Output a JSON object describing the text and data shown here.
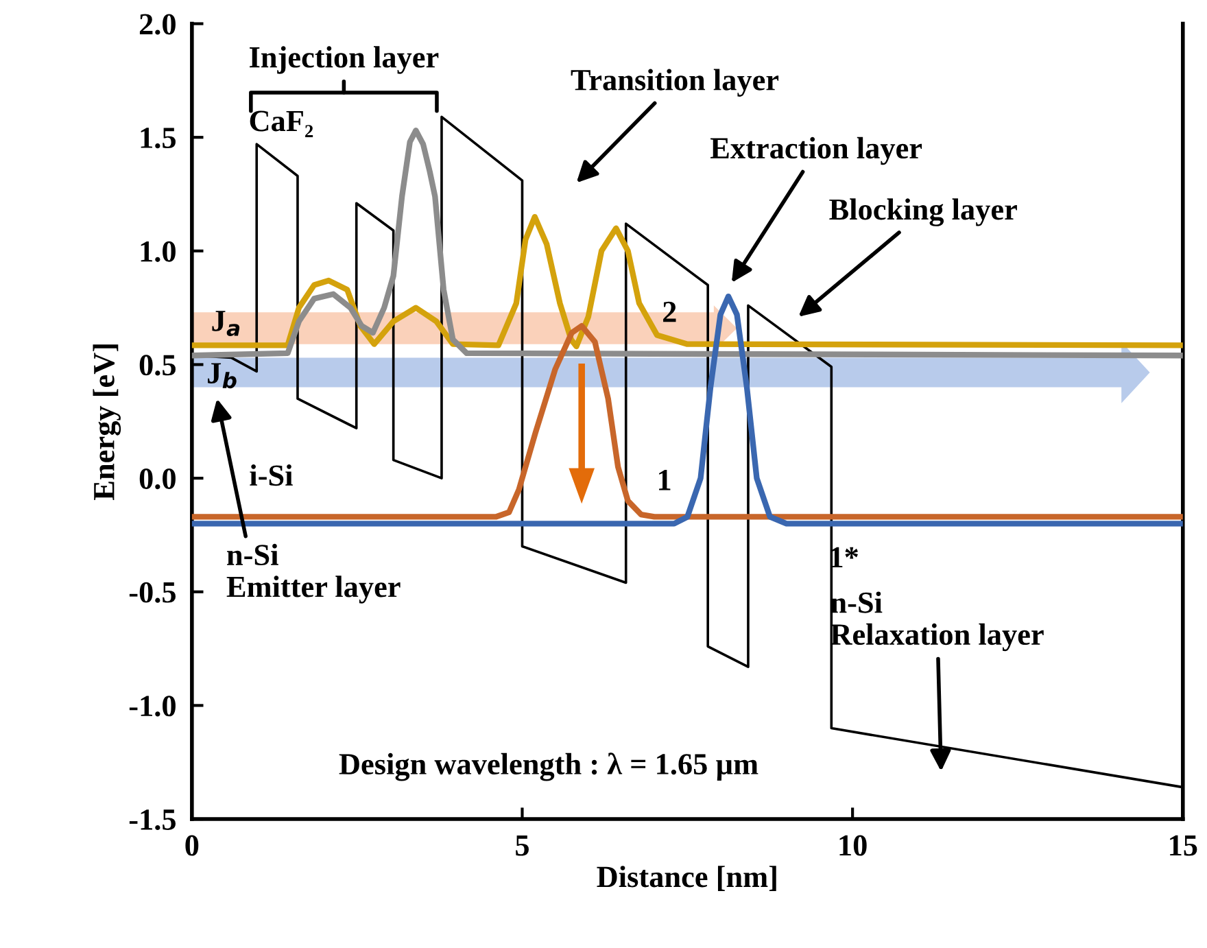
{
  "chart_data": {
    "type": "line",
    "xlabel": "Distance [nm]",
    "ylabel": "Energy [eV]",
    "xlim": [
      0,
      15
    ],
    "xticks": [
      0,
      5,
      10,
      15
    ],
    "ylim": [
      -1.5,
      2.0
    ],
    "yticks": [
      {
        "value": -1.5,
        "label": "-1.5"
      },
      {
        "value": -1.0,
        "label": "-1.0"
      },
      {
        "value": -0.5,
        "label": "-0.5"
      },
      {
        "value": 0,
        "label": "0.0"
      },
      {
        "value": 0.5,
        "label": "0.5"
      },
      {
        "value": 1.0,
        "label": "1.0"
      },
      {
        "value": 1.5,
        "label": "1.5"
      },
      {
        "value": 2.0,
        "label": "2.0"
      }
    ],
    "grid": false,
    "legend": false,
    "marker": "none",
    "line_style": "solid",
    "series": [
      {
        "color": "#000000",
        "x": [
          0,
          0.6,
          0.98,
          0.98,
          1.6,
          1.6,
          2.49,
          2.49,
          3.05,
          3.05,
          3.78,
          3.78,
          5.0,
          5.0,
          6.57,
          6.57,
          7.81,
          7.81,
          8.42,
          8.42,
          9.68,
          9.68,
          15
        ],
        "values": [
          0.54,
          0.53,
          0.47,
          1.47,
          1.33,
          0.35,
          0.22,
          1.21,
          1.09,
          0.08,
          0.0,
          1.59,
          1.31,
          -0.3,
          -0.46,
          1.12,
          0.85,
          -0.74,
          -0.83,
          0.76,
          0.49,
          -1.1,
          -1.36
        ]
      },
      {
        "color": "#d4a20c",
        "x": [
          0,
          1.45,
          1.62,
          1.85,
          2.07,
          2.35,
          2.55,
          2.76,
          3.05,
          3.39,
          3.7,
          3.95,
          4.64,
          4.91,
          5.05,
          5.19,
          5.37,
          5.57,
          5.74,
          5.82,
          6.0,
          6.2,
          6.42,
          6.6,
          6.77,
          7.04,
          7.5,
          15
        ],
        "values": [
          0.585,
          0.585,
          0.75,
          0.85,
          0.87,
          0.83,
          0.67,
          0.59,
          0.69,
          0.75,
          0.69,
          0.59,
          0.585,
          0.77,
          1.05,
          1.15,
          1.03,
          0.77,
          0.61,
          0.58,
          0.71,
          1.0,
          1.1,
          1.0,
          0.77,
          0.63,
          0.59,
          0.585
        ]
      },
      {
        "color": "#8c8c8c",
        "x": [
          0,
          1.45,
          1.62,
          1.85,
          2.14,
          2.4,
          2.57,
          2.74,
          2.91,
          3.05,
          3.18,
          3.3,
          3.39,
          3.5,
          3.6,
          3.68,
          3.81,
          3.95,
          4.16,
          15
        ],
        "values": [
          0.54,
          0.55,
          0.69,
          0.79,
          0.81,
          0.75,
          0.67,
          0.64,
          0.75,
          0.89,
          1.24,
          1.48,
          1.53,
          1.47,
          1.35,
          1.24,
          0.83,
          0.61,
          0.55,
          0.54
        ]
      },
      {
        "color": "#c8662a",
        "x": [
          0,
          4.6,
          4.8,
          4.95,
          5.2,
          5.5,
          5.75,
          5.9,
          6.1,
          6.3,
          6.45,
          6.6,
          6.8,
          7.0,
          15
        ],
        "values": [
          -0.17,
          -0.17,
          -0.15,
          -0.05,
          0.2,
          0.48,
          0.64,
          0.67,
          0.6,
          0.35,
          0.05,
          -0.1,
          -0.16,
          -0.17,
          -0.17
        ]
      },
      {
        "color": "#3a67b0",
        "x": [
          0,
          7.3,
          7.5,
          7.7,
          7.85,
          8.0,
          8.12,
          8.25,
          8.4,
          8.55,
          8.75,
          9.0,
          15
        ],
        "values": [
          -0.2,
          -0.2,
          -0.17,
          0.0,
          0.4,
          0.72,
          0.8,
          0.72,
          0.4,
          0.0,
          -0.17,
          -0.2,
          -0.2
        ]
      }
    ],
    "annotations": [
      "Injection layer",
      "CaF₂",
      "Transition layer",
      "Extraction layer",
      "Blocking layer",
      "J$_{a}$",
      "J$_{b}$",
      "2",
      "1",
      "i-Si",
      "1*",
      "n-Si\nEmitter layer",
      "n-Si\nRelaxation layer",
      "Design wavelength : λ = 1.65 µm"
    ]
  }
}
